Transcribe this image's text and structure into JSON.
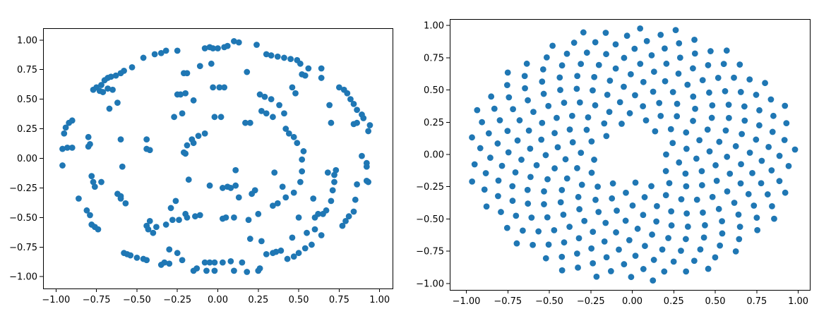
{
  "chart_data": [
    {
      "type": "scatter",
      "title": "",
      "xlabel": "",
      "ylabel": "",
      "xlim": [
        -1.08,
        1.08
      ],
      "ylim": [
        -1.1,
        1.1
      ],
      "grid": false,
      "xticks": [
        -1.0,
        -0.75,
        -0.5,
        -0.25,
        0.0,
        0.25,
        0.5,
        0.75,
        1.0
      ],
      "xtick_labels": [
        "−1.00",
        "−0.75",
        "−0.50",
        "−0.25",
        "0.00",
        "0.25",
        "0.50",
        "0.75",
        "1.00"
      ],
      "yticks": [
        -1.0,
        -0.75,
        -0.5,
        -0.25,
        0.0,
        0.25,
        0.5,
        0.75,
        1.0
      ],
      "ytick_labels": [
        "−1.00",
        "−0.75",
        "−0.50",
        "−0.25",
        "0.00",
        "0.25",
        "0.50",
        "0.75",
        "1.00"
      ],
      "marker_color": "#1f77b4",
      "marker_shape": "circle",
      "points_description_rings": [
        {
          "radius_x": 0.95,
          "radius_y": 0.95,
          "count": 80
        },
        {
          "radius_x": 0.62,
          "radius_y": 0.62,
          "count": 50
        },
        {
          "radius_x": 0.26,
          "radius_y": 0.26,
          "count": 30
        }
      ],
      "points": [
        [
          -0.96,
          0.08
        ],
        [
          -0.95,
          0.21
        ],
        [
          -0.94,
          0.26
        ],
        [
          -0.92,
          0.3
        ],
        [
          -0.9,
          0.32
        ],
        [
          -0.93,
          0.09
        ],
        [
          -0.96,
          -0.06
        ],
        [
          -0.9,
          0.09
        ],
        [
          -0.8,
          0.18
        ],
        [
          -0.79,
          0.12
        ],
        [
          -0.8,
          0.1
        ],
        [
          -0.78,
          -0.15
        ],
        [
          -0.77,
          -0.2
        ],
        [
          -0.76,
          -0.24
        ],
        [
          -0.86,
          -0.34
        ],
        [
          -0.81,
          -0.44
        ],
        [
          -0.79,
          -0.48
        ],
        [
          -0.78,
          -0.56
        ],
        [
          -0.76,
          -0.58
        ],
        [
          -0.74,
          -0.6
        ],
        [
          -0.77,
          0.58
        ],
        [
          -0.75,
          0.6
        ],
        [
          -0.73,
          0.57
        ],
        [
          -0.71,
          0.56
        ],
        [
          -0.72,
          0.62
        ],
        [
          -0.7,
          0.66
        ],
        [
          -0.68,
          0.68
        ],
        [
          -0.66,
          0.69
        ],
        [
          -0.63,
          0.7
        ],
        [
          -0.6,
          0.72
        ],
        [
          -0.58,
          0.74
        ],
        [
          -0.67,
          0.42
        ],
        [
          -0.65,
          0.58
        ],
        [
          -0.68,
          0.59
        ],
        [
          -0.46,
          0.85
        ],
        [
          -0.39,
          0.88
        ],
        [
          -0.35,
          0.89
        ],
        [
          -0.32,
          0.91
        ],
        [
          -0.25,
          0.91
        ],
        [
          -0.19,
          0.72
        ],
        [
          -0.21,
          0.72
        ],
        [
          -0.08,
          0.93
        ],
        [
          -0.05,
          0.94
        ],
        [
          -0.03,
          0.93
        ],
        [
          0.0,
          0.93
        ],
        [
          0.04,
          0.94
        ],
        [
          0.06,
          0.95
        ],
        [
          0.1,
          0.99
        ],
        [
          0.13,
          0.98
        ],
        [
          0.24,
          0.96
        ],
        [
          0.3,
          0.88
        ],
        [
          0.33,
          0.87
        ],
        [
          0.37,
          0.86
        ],
        [
          0.41,
          0.85
        ],
        [
          0.45,
          0.84
        ],
        [
          0.49,
          0.83
        ],
        [
          0.51,
          0.8
        ],
        [
          0.56,
          0.76
        ],
        [
          0.64,
          0.76
        ],
        [
          0.64,
          0.68
        ],
        [
          0.52,
          0.71
        ],
        [
          0.54,
          0.7
        ],
        [
          0.78,
          0.58
        ],
        [
          0.8,
          0.55
        ],
        [
          0.82,
          0.5
        ],
        [
          0.84,
          0.46
        ],
        [
          0.86,
          0.41
        ],
        [
          0.89,
          0.37
        ],
        [
          0.9,
          0.34
        ],
        [
          0.86,
          0.3
        ],
        [
          0.84,
          0.29
        ],
        [
          0.93,
          0.23
        ],
        [
          0.94,
          0.28
        ],
        [
          0.89,
          0.02
        ],
        [
          0.92,
          -0.04
        ],
        [
          0.92,
          -0.07
        ],
        [
          0.92,
          -0.19
        ],
        [
          0.86,
          -0.22
        ],
        [
          0.93,
          -0.2
        ],
        [
          0.85,
          -0.35
        ],
        [
          0.84,
          -0.45
        ],
        [
          0.81,
          -0.49
        ],
        [
          0.79,
          -0.53
        ],
        [
          0.77,
          -0.57
        ],
        [
          0.64,
          -0.65
        ],
        [
          0.58,
          -0.73
        ],
        [
          0.54,
          -0.76
        ],
        [
          0.5,
          -0.8
        ],
        [
          0.47,
          -0.83
        ],
        [
          0.43,
          -0.85
        ],
        [
          0.39,
          -0.78
        ],
        [
          0.36,
          -0.79
        ],
        [
          0.34,
          -0.8
        ],
        [
          0.3,
          -0.81
        ],
        [
          0.26,
          -0.93
        ],
        [
          0.18,
          -0.96
        ],
        [
          0.15,
          -0.88
        ],
        [
          0.08,
          -0.87
        ],
        [
          0.03,
          -0.88
        ],
        [
          -0.02,
          -0.88
        ],
        [
          -0.05,
          -0.88
        ],
        [
          -0.08,
          -0.88
        ],
        [
          -0.02,
          -0.95
        ],
        [
          -0.07,
          -0.95
        ],
        [
          -0.13,
          -0.93
        ],
        [
          -0.15,
          -0.95
        ],
        [
          -0.22,
          -0.86
        ],
        [
          -0.25,
          -0.8
        ],
        [
          -0.3,
          -0.89
        ],
        [
          -0.33,
          -0.88
        ],
        [
          -0.35,
          -0.9
        ],
        [
          -0.44,
          -0.86
        ],
        [
          -0.46,
          -0.85
        ],
        [
          -0.5,
          -0.84
        ],
        [
          -0.54,
          -0.82
        ],
        [
          -0.56,
          -0.81
        ],
        [
          -0.58,
          -0.8
        ],
        [
          -0.27,
          0.35
        ],
        [
          -0.2,
          0.55
        ],
        [
          -0.23,
          0.54
        ],
        [
          -0.15,
          0.49
        ],
        [
          -0.25,
          0.54
        ],
        [
          -0.03,
          0.6
        ],
        [
          0.01,
          0.6
        ],
        [
          0.04,
          0.6
        ],
        [
          0.26,
          0.54
        ],
        [
          0.29,
          0.52
        ],
        [
          0.33,
          0.5
        ],
        [
          0.38,
          0.45
        ],
        [
          0.27,
          0.4
        ],
        [
          0.3,
          0.38
        ],
        [
          0.34,
          0.35
        ],
        [
          0.2,
          0.3
        ],
        [
          0.41,
          0.38
        ],
        [
          0.42,
          0.25
        ],
        [
          0.44,
          0.21
        ],
        [
          0.47,
          0.18
        ],
        [
          0.49,
          0.13
        ],
        [
          0.53,
          0.06
        ],
        [
          0.52,
          -0.01
        ],
        [
          0.52,
          -0.11
        ],
        [
          0.51,
          -0.2
        ],
        [
          0.47,
          -0.29
        ],
        [
          0.42,
          -0.33
        ],
        [
          0.37,
          -0.38
        ],
        [
          0.34,
          -0.4
        ],
        [
          0.25,
          -0.47
        ],
        [
          0.19,
          -0.52
        ],
        [
          0.1,
          -0.5
        ],
        [
          0.05,
          -0.5
        ],
        [
          0.03,
          -0.51
        ],
        [
          -0.11,
          -0.48
        ],
        [
          -0.14,
          -0.49
        ],
        [
          -0.19,
          -0.5
        ],
        [
          -0.24,
          -0.52
        ],
        [
          -0.28,
          -0.52
        ],
        [
          -0.32,
          -0.56
        ],
        [
          -0.38,
          -0.58
        ],
        [
          -0.42,
          -0.53
        ],
        [
          -0.44,
          -0.57
        ],
        [
          -0.57,
          -0.38
        ],
        [
          -0.6,
          -0.34
        ],
        [
          -0.6,
          -0.32
        ],
        [
          -0.62,
          -0.3
        ],
        [
          -0.72,
          -0.2
        ],
        [
          -0.6,
          0.16
        ],
        [
          -0.44,
          0.16
        ],
        [
          -0.44,
          0.08
        ],
        [
          -0.42,
          0.07
        ],
        [
          -0.59,
          -0.07
        ],
        [
          -0.21,
          0.05
        ],
        [
          -0.2,
          0.04
        ],
        [
          -0.19,
          0.11
        ],
        [
          -0.16,
          0.16
        ],
        [
          -0.15,
          0.13
        ],
        [
          -0.12,
          0.19
        ],
        [
          -0.08,
          0.21
        ],
        [
          -0.02,
          0.35
        ],
        [
          0.02,
          0.35
        ],
        [
          0.17,
          0.3
        ],
        [
          0.11,
          -0.1
        ],
        [
          0.06,
          -0.24
        ],
        [
          0.08,
          -0.25
        ],
        [
          0.11,
          -0.23
        ],
        [
          0.23,
          -0.27
        ],
        [
          0.21,
          -0.3
        ],
        [
          0.13,
          -0.33
        ],
        [
          0.35,
          -0.12
        ],
        [
          0.4,
          -0.24
        ],
        [
          0.03,
          -0.25
        ],
        [
          -0.18,
          -0.18
        ],
        [
          -0.05,
          -0.23
        ],
        [
          -0.26,
          -0.36
        ],
        [
          -0.2,
          -0.47
        ],
        [
          0.2,
          -0.68
        ],
        [
          0.27,
          -0.7
        ],
        [
          -0.3,
          -0.77
        ],
        [
          -0.43,
          -0.6
        ],
        [
          -0.4,
          -0.63
        ],
        [
          -0.29,
          -0.42
        ],
        [
          0.75,
          0.6
        ],
        [
          0.69,
          0.45
        ],
        [
          0.7,
          0.3
        ],
        [
          0.72,
          -0.2
        ],
        [
          0.71,
          -0.27
        ],
        [
          0.7,
          -0.36
        ],
        [
          0.67,
          -0.44
        ],
        [
          0.65,
          -0.47
        ],
        [
          0.6,
          -0.6
        ],
        [
          0.55,
          -0.63
        ],
        [
          0.46,
          -0.67
        ],
        [
          0.5,
          -0.5
        ],
        [
          0.62,
          -0.47
        ],
        [
          0.6,
          -0.5
        ],
        [
          0.59,
          -0.34
        ],
        [
          0.68,
          -0.12
        ],
        [
          0.73,
          -0.1
        ],
        [
          0.72,
          -0.14
        ],
        [
          0.1,
          -0.95
        ],
        [
          0.25,
          -0.95
        ],
        [
          -0.04,
          0.8
        ],
        [
          0.18,
          0.73
        ],
        [
          -0.53,
          0.77
        ],
        [
          -0.62,
          0.47
        ],
        [
          -0.11,
          0.78
        ],
        [
          -0.22,
          0.38
        ],
        [
          0.48,
          0.55
        ],
        [
          0.46,
          0.6
        ]
      ]
    },
    {
      "type": "scatter",
      "title": "",
      "xlabel": "",
      "ylabel": "",
      "xlim": [
        -1.1,
        1.07
      ],
      "ylim": [
        -1.05,
        1.05
      ],
      "grid": false,
      "xticks": [
        -1.0,
        -0.75,
        -0.5,
        -0.25,
        0.0,
        0.25,
        0.5,
        0.75,
        1.0
      ],
      "xtick_labels": [
        "−1.00",
        "−0.75",
        "−0.50",
        "−0.25",
        "0.00",
        "0.25",
        "0.50",
        "0.75",
        "1.00"
      ],
      "yticks": [
        -1.0,
        -0.75,
        -0.5,
        -0.25,
        0.0,
        0.25,
        0.5,
        0.75,
        1.0
      ],
      "ytick_labels": [
        "−1.00",
        "−0.75",
        "−0.50",
        "−0.25",
        "0.00",
        "0.25",
        "0.50",
        "0.75",
        "1.00"
      ],
      "marker_color": "#1f77b4",
      "marker_shape": "circle",
      "pattern": "sunflower spiral",
      "point_count": 300,
      "inner_hole_radius": 0.2
    }
  ]
}
